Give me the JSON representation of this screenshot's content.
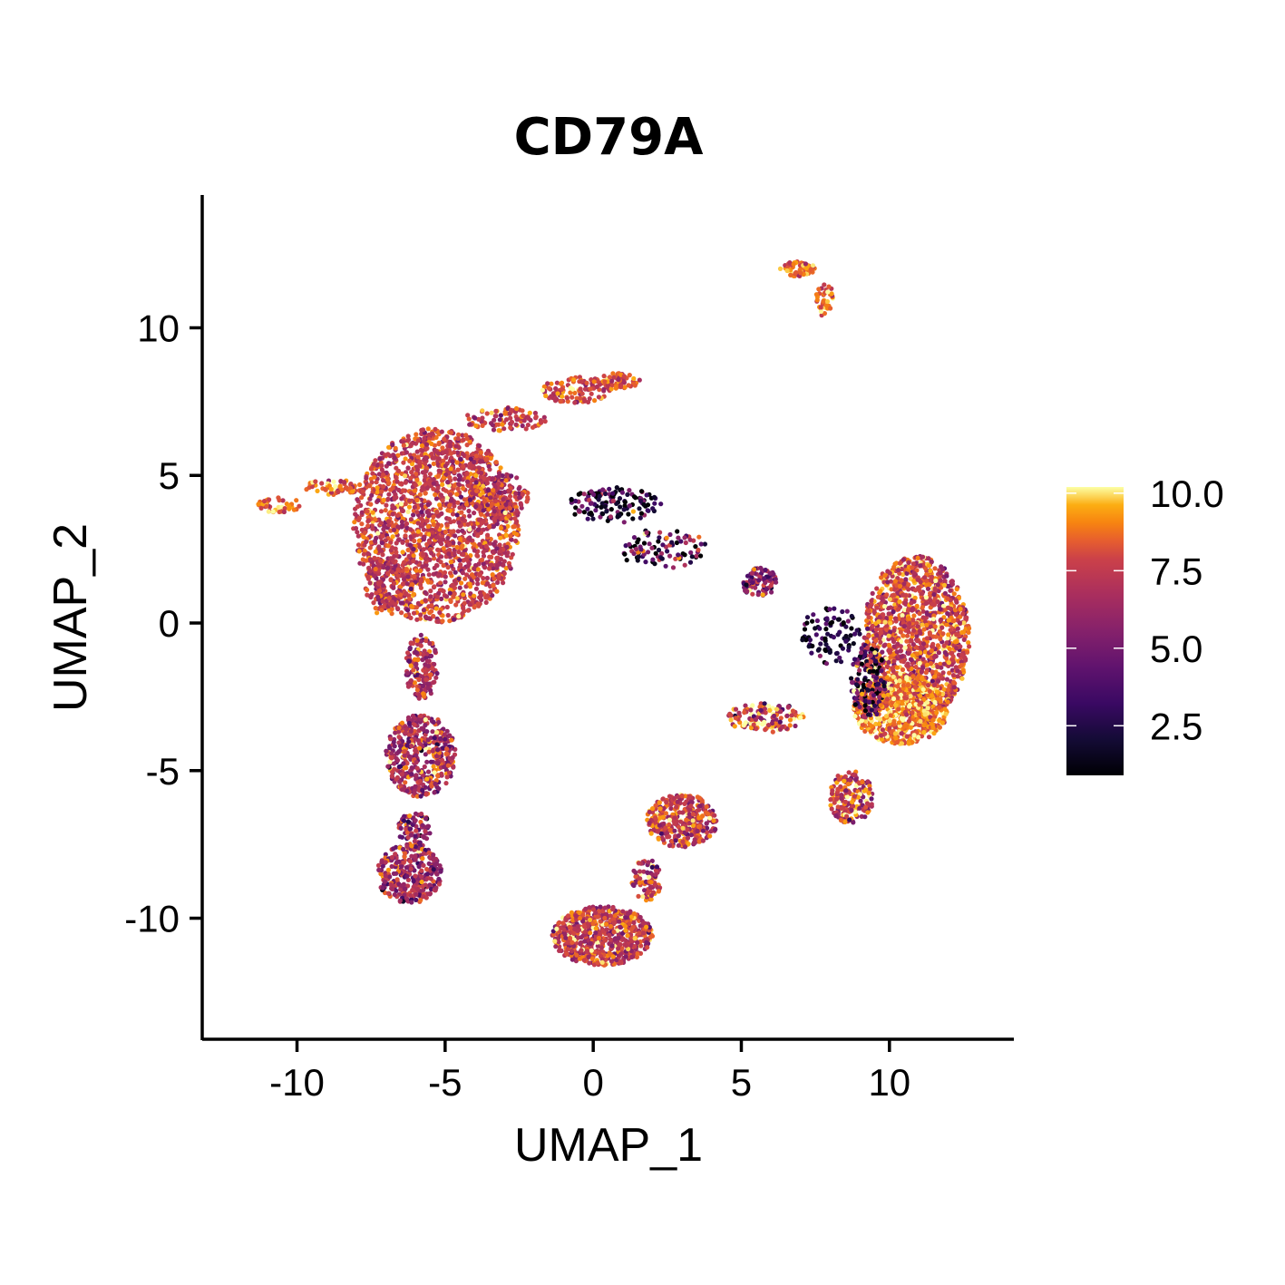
{
  "chart_data": {
    "type": "scatter",
    "title": "CD79A",
    "xlabel": "UMAP_1",
    "ylabel": "UMAP_2",
    "xlim": [
      -13.2,
      14.2
    ],
    "ylim": [
      -14.1,
      14.5
    ],
    "x_ticks": [
      -10,
      -5,
      0,
      5,
      10
    ],
    "x_tick_labels": [
      "-10",
      "-5",
      "0",
      "5",
      "10"
    ],
    "y_ticks": [
      -10,
      -5,
      0,
      5,
      10
    ],
    "y_tick_labels": [
      "-10",
      "-5",
      "0",
      "5",
      "10"
    ],
    "grid": false,
    "colormap": "inferno",
    "colorbar": {
      "range": [
        0.9,
        10.2
      ],
      "ticks": [
        2.5,
        5.0,
        7.5,
        10.0
      ],
      "tick_labels": [
        "2.5",
        "5.0",
        "7.5",
        "10.0"
      ],
      "placement": "right"
    },
    "clusters": [
      {
        "cx": -5.3,
        "cy": 3.3,
        "rx": 2.8,
        "ry": 3.3,
        "n": 1900,
        "mean": 7.6,
        "sd": 1.1
      },
      {
        "cx": -6.9,
        "cy": 1.2,
        "rx": 0.8,
        "ry": 1.0,
        "n": 120,
        "mean": 7.4,
        "sd": 1.1
      },
      {
        "cx": -3.2,
        "cy": 4.3,
        "rx": 1.0,
        "ry": 0.8,
        "n": 150,
        "mean": 7.4,
        "sd": 1.3
      },
      {
        "cx": -3.0,
        "cy": 6.9,
        "rx": 1.4,
        "ry": 0.4,
        "n": 90,
        "mean": 7.6,
        "sd": 1.2
      },
      {
        "cx": -0.6,
        "cy": 7.9,
        "rx": 1.2,
        "ry": 0.45,
        "n": 110,
        "mean": 7.8,
        "sd": 1.1
      },
      {
        "cx": 0.8,
        "cy": 8.2,
        "rx": 0.8,
        "ry": 0.3,
        "n": 60,
        "mean": 8.0,
        "sd": 1.0
      },
      {
        "cx": -8.8,
        "cy": 4.6,
        "rx": 1.0,
        "ry": 0.25,
        "n": 60,
        "mean": 8.4,
        "sd": 1.0
      },
      {
        "cx": -10.6,
        "cy": 4.0,
        "rx": 0.8,
        "ry": 0.25,
        "n": 40,
        "mean": 8.6,
        "sd": 1.0
      },
      {
        "cx": -5.8,
        "cy": -1.5,
        "rx": 0.55,
        "ry": 1.1,
        "n": 160,
        "mean": 6.8,
        "sd": 1.4
      },
      {
        "cx": -5.8,
        "cy": -4.5,
        "rx": 1.2,
        "ry": 1.4,
        "n": 420,
        "mean": 6.6,
        "sd": 1.5
      },
      {
        "cx": -6.0,
        "cy": -7.0,
        "rx": 0.6,
        "ry": 0.6,
        "n": 80,
        "mean": 6.0,
        "sd": 1.8
      },
      {
        "cx": -6.2,
        "cy": -8.5,
        "rx": 1.1,
        "ry": 1.0,
        "n": 300,
        "mean": 6.6,
        "sd": 1.5
      },
      {
        "cx": 6.9,
        "cy": 12.0,
        "rx": 0.6,
        "ry": 0.25,
        "n": 60,
        "mean": 8.6,
        "sd": 0.9
      },
      {
        "cx": 7.8,
        "cy": 11.0,
        "rx": 0.3,
        "ry": 0.6,
        "n": 40,
        "mean": 8.4,
        "sd": 1.0
      },
      {
        "cx": 0.7,
        "cy": 4.0,
        "rx": 1.6,
        "ry": 0.6,
        "n": 130,
        "mean": 2.6,
        "sd": 2.6
      },
      {
        "cx": 2.4,
        "cy": 2.5,
        "rx": 1.5,
        "ry": 0.7,
        "n": 90,
        "mean": 3.8,
        "sd": 3.0
      },
      {
        "cx": 5.6,
        "cy": 1.4,
        "rx": 0.6,
        "ry": 0.5,
        "n": 90,
        "mean": 5.3,
        "sd": 1.8
      },
      {
        "cx": 8.0,
        "cy": -0.4,
        "rx": 1.0,
        "ry": 1.0,
        "n": 90,
        "mean": 1.8,
        "sd": 1.6
      },
      {
        "cx": 10.9,
        "cy": -0.5,
        "rx": 1.8,
        "ry": 2.8,
        "n": 1300,
        "mean": 7.9,
        "sd": 1.3
      },
      {
        "cx": 10.4,
        "cy": -2.9,
        "rx": 1.6,
        "ry": 1.2,
        "n": 650,
        "mean": 9.0,
        "sd": 1.0
      },
      {
        "cx": 9.3,
        "cy": -2.0,
        "rx": 0.6,
        "ry": 1.3,
        "n": 180,
        "mean": 4.2,
        "sd": 3.2
      },
      {
        "cx": 5.8,
        "cy": -3.2,
        "rx": 1.3,
        "ry": 0.5,
        "n": 130,
        "mean": 7.8,
        "sd": 2.2
      },
      {
        "cx": 8.7,
        "cy": -5.9,
        "rx": 0.75,
        "ry": 0.9,
        "n": 180,
        "mean": 7.8,
        "sd": 1.6
      },
      {
        "cx": 3.0,
        "cy": -6.7,
        "rx": 1.2,
        "ry": 0.9,
        "n": 330,
        "mean": 7.5,
        "sd": 1.3
      },
      {
        "cx": 1.8,
        "cy": -8.7,
        "rx": 0.5,
        "ry": 0.7,
        "n": 80,
        "mean": 7.0,
        "sd": 1.6
      },
      {
        "cx": 0.3,
        "cy": -10.6,
        "rx": 1.7,
        "ry": 1.0,
        "n": 650,
        "mean": 7.6,
        "sd": 1.3
      }
    ]
  }
}
